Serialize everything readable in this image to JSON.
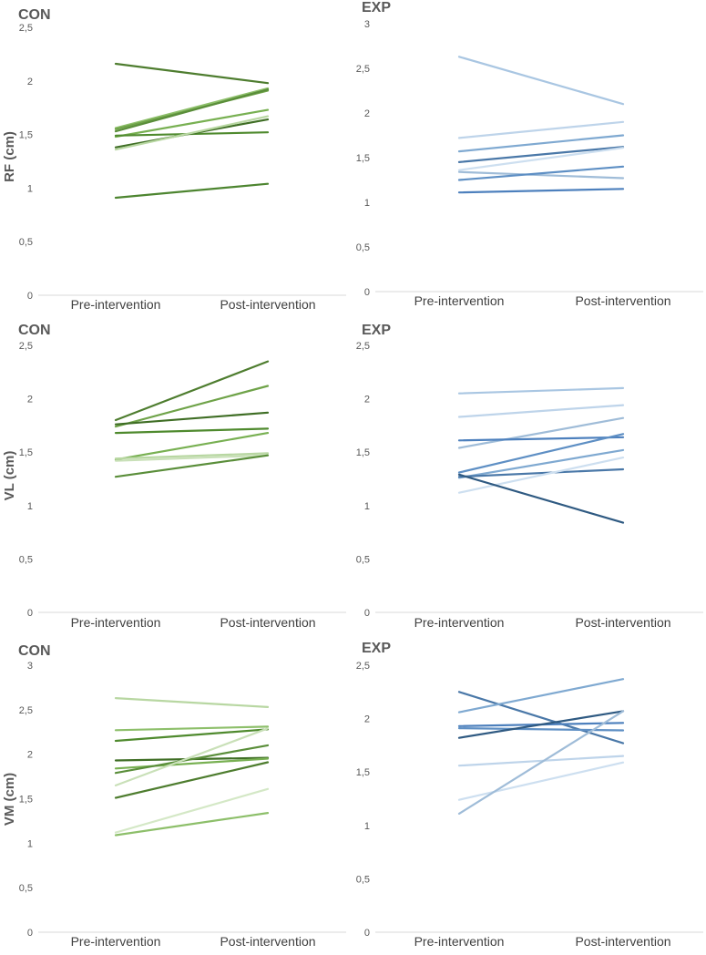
{
  "chart_data": [
    {
      "id": "rf-con",
      "type": "line",
      "title": "CON",
      "ylabel": "RF (cm)",
      "categories": [
        "Pre-intervention",
        "Post-intervention"
      ],
      "ylim": [
        0,
        2.5
      ],
      "yticks": [
        "0",
        "0,5",
        "1",
        "1,5",
        "2",
        "2,5"
      ],
      "series": [
        {
          "values": [
            2.16,
            1.98
          ],
          "color": "#4e7d2f"
        },
        {
          "values": [
            1.56,
            1.93
          ],
          "color": "#8dbf6a"
        },
        {
          "values": [
            1.55,
            1.91
          ],
          "color": "#6fa349"
        },
        {
          "values": [
            1.53,
            1.92
          ],
          "color": "#5a8e3a"
        },
        {
          "values": [
            1.48,
            1.73
          ],
          "color": "#78b052"
        },
        {
          "values": [
            1.49,
            1.52
          ],
          "color": "#4f8a2e"
        },
        {
          "values": [
            1.38,
            1.64
          ],
          "color": "#3f6e25"
        },
        {
          "values": [
            1.36,
            1.67
          ],
          "color": "#b8d7a2"
        },
        {
          "values": [
            0.91,
            1.04
          ],
          "color": "#4d8530"
        }
      ]
    },
    {
      "id": "rf-exp",
      "type": "line",
      "title": "EXP",
      "ylabel": "",
      "categories": [
        "Pre-intervention",
        "Post-intervention"
      ],
      "ylim": [
        0,
        3
      ],
      "yticks": [
        "0",
        "0,5",
        "1",
        "1,5",
        "2",
        "2,5",
        "3"
      ],
      "series": [
        {
          "values": [
            2.63,
            2.1
          ],
          "color": "#a9c6e2"
        },
        {
          "values": [
            1.72,
            1.9
          ],
          "color": "#bed4ea"
        },
        {
          "values": [
            1.57,
            1.75
          ],
          "color": "#7fa9d1"
        },
        {
          "values": [
            1.45,
            1.62
          ],
          "color": "#4a78a8"
        },
        {
          "values": [
            1.36,
            1.61
          ],
          "color": "#cddff0"
        },
        {
          "values": [
            1.34,
            1.27
          ],
          "color": "#9fbcd8"
        },
        {
          "values": [
            1.25,
            1.4
          ],
          "color": "#5e8fc4"
        },
        {
          "values": [
            1.11,
            1.15
          ],
          "color": "#4d80bd"
        }
      ]
    },
    {
      "id": "vl-con",
      "type": "line",
      "title": "CON",
      "ylabel": "VL (cm)",
      "categories": [
        "Pre-intervention",
        "Post-intervention"
      ],
      "ylim": [
        0,
        2.5
      ],
      "yticks": [
        "0",
        "0,5",
        "1",
        "1,5",
        "2",
        "2,5"
      ],
      "series": [
        {
          "values": [
            1.8,
            2.35
          ],
          "color": "#4e7d2f"
        },
        {
          "values": [
            1.74,
            2.12
          ],
          "color": "#6fa349"
        },
        {
          "values": [
            1.76,
            1.87
          ],
          "color": "#3f6e25"
        },
        {
          "values": [
            1.68,
            1.72
          ],
          "color": "#4f8a2e"
        },
        {
          "values": [
            1.43,
            1.68
          ],
          "color": "#78b052"
        },
        {
          "values": [
            1.44,
            1.49
          ],
          "color": "#b8d7a2"
        },
        {
          "values": [
            1.42,
            1.47
          ],
          "color": "#c9e0b8"
        },
        {
          "values": [
            1.27,
            1.47
          ],
          "color": "#5a8e3a"
        }
      ]
    },
    {
      "id": "vl-exp",
      "type": "line",
      "title": "EXP",
      "ylabel": "",
      "categories": [
        "Pre-intervention",
        "Post-intervention"
      ],
      "ylim": [
        0,
        2.5
      ],
      "yticks": [
        "0",
        "0,5",
        "1",
        "1,5",
        "2",
        "2,5"
      ],
      "series": [
        {
          "values": [
            2.05,
            2.1
          ],
          "color": "#a9c6e2"
        },
        {
          "values": [
            1.83,
            1.94
          ],
          "color": "#bed4ea"
        },
        {
          "values": [
            1.54,
            1.82
          ],
          "color": "#9fbcd8"
        },
        {
          "values": [
            1.61,
            1.64
          ],
          "color": "#4d80bd"
        },
        {
          "values": [
            1.31,
            1.67
          ],
          "color": "#5e8fc4"
        },
        {
          "values": [
            1.26,
            1.52
          ],
          "color": "#7fa9d1"
        },
        {
          "values": [
            1.27,
            1.34
          ],
          "color": "#4a78a8"
        },
        {
          "values": [
            1.12,
            1.45
          ],
          "color": "#cddff0"
        },
        {
          "values": [
            1.29,
            0.84
          ],
          "color": "#2f5a82"
        }
      ]
    },
    {
      "id": "vm-con",
      "type": "line",
      "title": "CON",
      "ylabel": "VM (cm)",
      "categories": [
        "Pre-intervention",
        "Post-intervention"
      ],
      "ylim": [
        0,
        3
      ],
      "yticks": [
        "0",
        "0,5",
        "1",
        "1,5",
        "2",
        "2,5",
        "3"
      ],
      "series": [
        {
          "values": [
            2.63,
            2.53
          ],
          "color": "#b8d7a2"
        },
        {
          "values": [
            2.27,
            2.31
          ],
          "color": "#8dbf6a"
        },
        {
          "values": [
            2.15,
            2.28
          ],
          "color": "#4f8a2e"
        },
        {
          "values": [
            1.93,
            1.96
          ],
          "color": "#3f6e25"
        },
        {
          "values": [
            1.84,
            1.95
          ],
          "color": "#78b052"
        },
        {
          "values": [
            1.79,
            2.1
          ],
          "color": "#5a8e3a"
        },
        {
          "values": [
            1.65,
            2.29
          ],
          "color": "#c9e0b8"
        },
        {
          "values": [
            1.51,
            1.91
          ],
          "color": "#4e7d2f"
        },
        {
          "values": [
            1.12,
            1.61
          ],
          "color": "#d4e8c6"
        },
        {
          "values": [
            1.09,
            1.34
          ],
          "color": "#8dbf6a"
        }
      ]
    },
    {
      "id": "vm-exp",
      "type": "line",
      "title": "EXP",
      "ylabel": "",
      "categories": [
        "Pre-intervention",
        "Post-intervention"
      ],
      "ylim": [
        0,
        2.5
      ],
      "yticks": [
        "0",
        "0,5",
        "1",
        "1,5",
        "2",
        "2,5"
      ],
      "series": [
        {
          "values": [
            2.25,
            1.77
          ],
          "color": "#4a78a8"
        },
        {
          "values": [
            2.06,
            2.37
          ],
          "color": "#7fa9d1"
        },
        {
          "values": [
            1.93,
            1.96
          ],
          "color": "#4d80bd"
        },
        {
          "values": [
            1.91,
            1.89
          ],
          "color": "#5e8fc4"
        },
        {
          "values": [
            1.82,
            2.07
          ],
          "color": "#2f5a82"
        },
        {
          "values": [
            1.56,
            1.65
          ],
          "color": "#bed4ea"
        },
        {
          "values": [
            1.24,
            1.59
          ],
          "color": "#cddff0"
        },
        {
          "values": [
            1.11,
            2.07
          ],
          "color": "#9fbcd8"
        }
      ]
    }
  ]
}
